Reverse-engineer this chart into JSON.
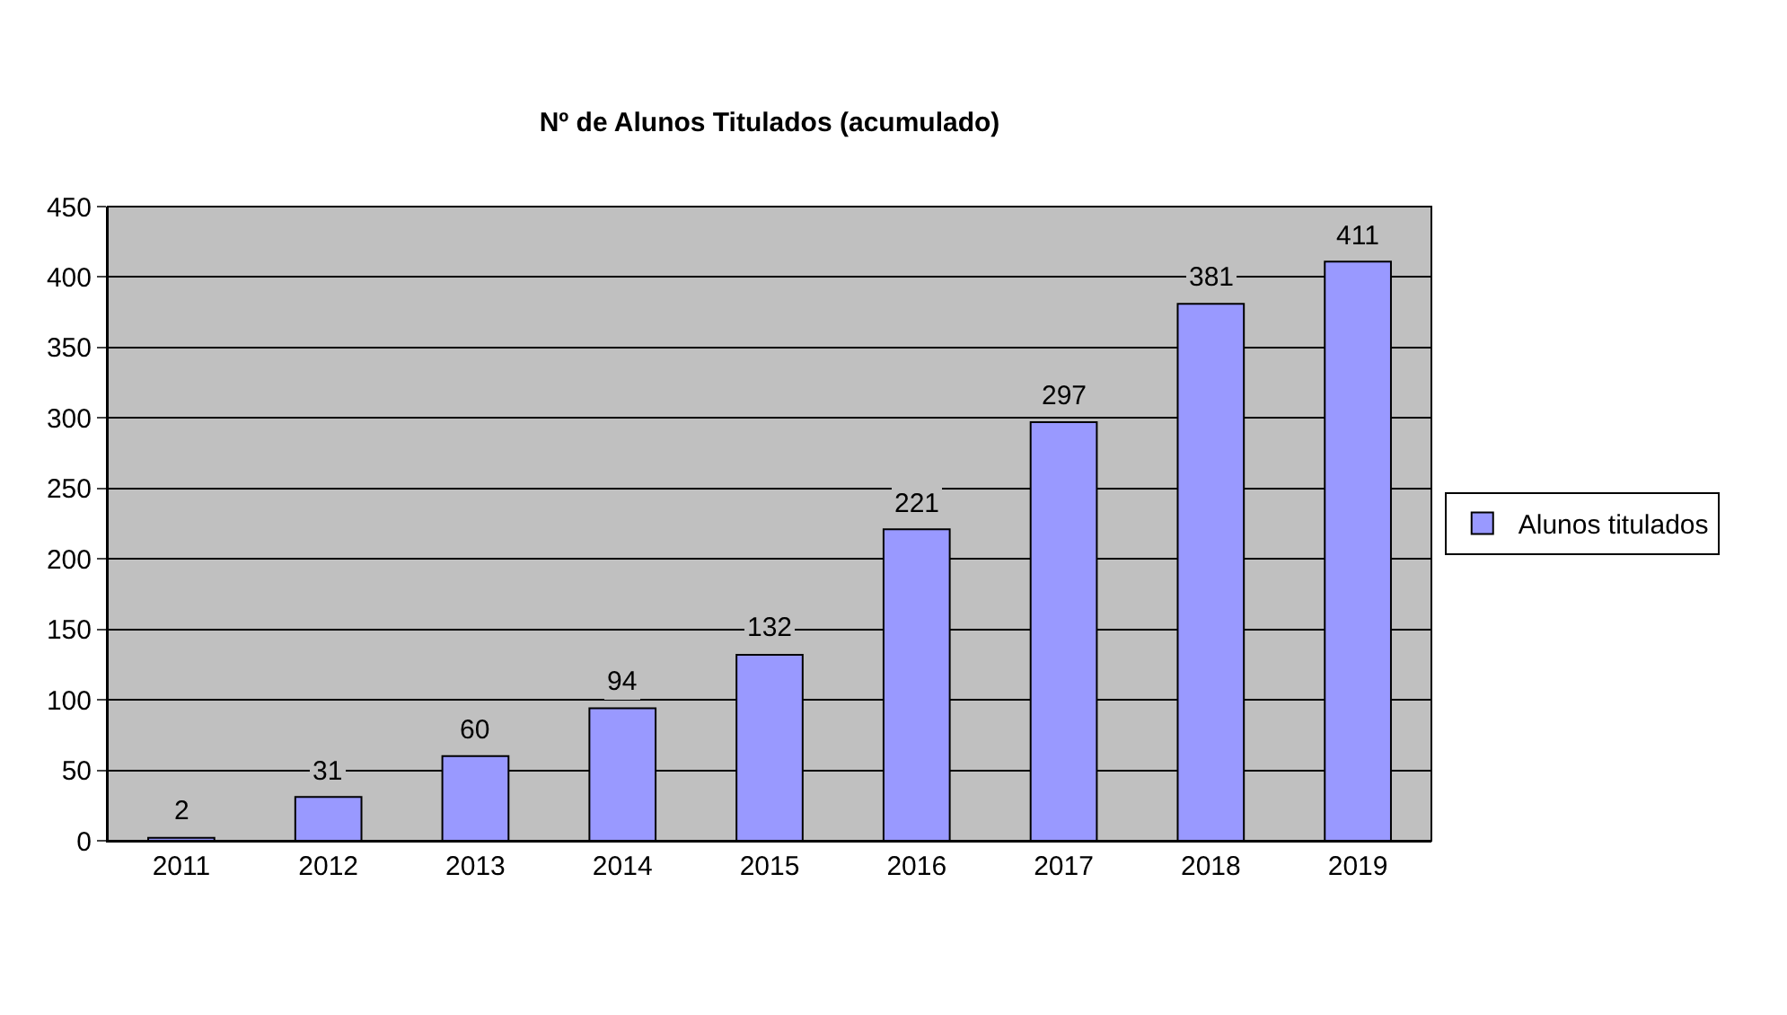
{
  "chart_data": {
    "type": "bar",
    "title": "Nº de Alunos Titulados (acumulado)",
    "categories": [
      "2011",
      "2012",
      "2013",
      "2014",
      "2015",
      "2016",
      "2017",
      "2018",
      "2019"
    ],
    "series": [
      {
        "name": "Alunos titulados",
        "color": "#9999ff",
        "values": [
          2,
          31,
          60,
          94,
          132,
          221,
          297,
          381,
          411
        ]
      }
    ],
    "ylim": [
      0,
      450
    ],
    "yticks": [
      0,
      50,
      100,
      150,
      200,
      250,
      300,
      350,
      400,
      450
    ],
    "grid": "y",
    "legend": "right",
    "data_labels": true
  }
}
